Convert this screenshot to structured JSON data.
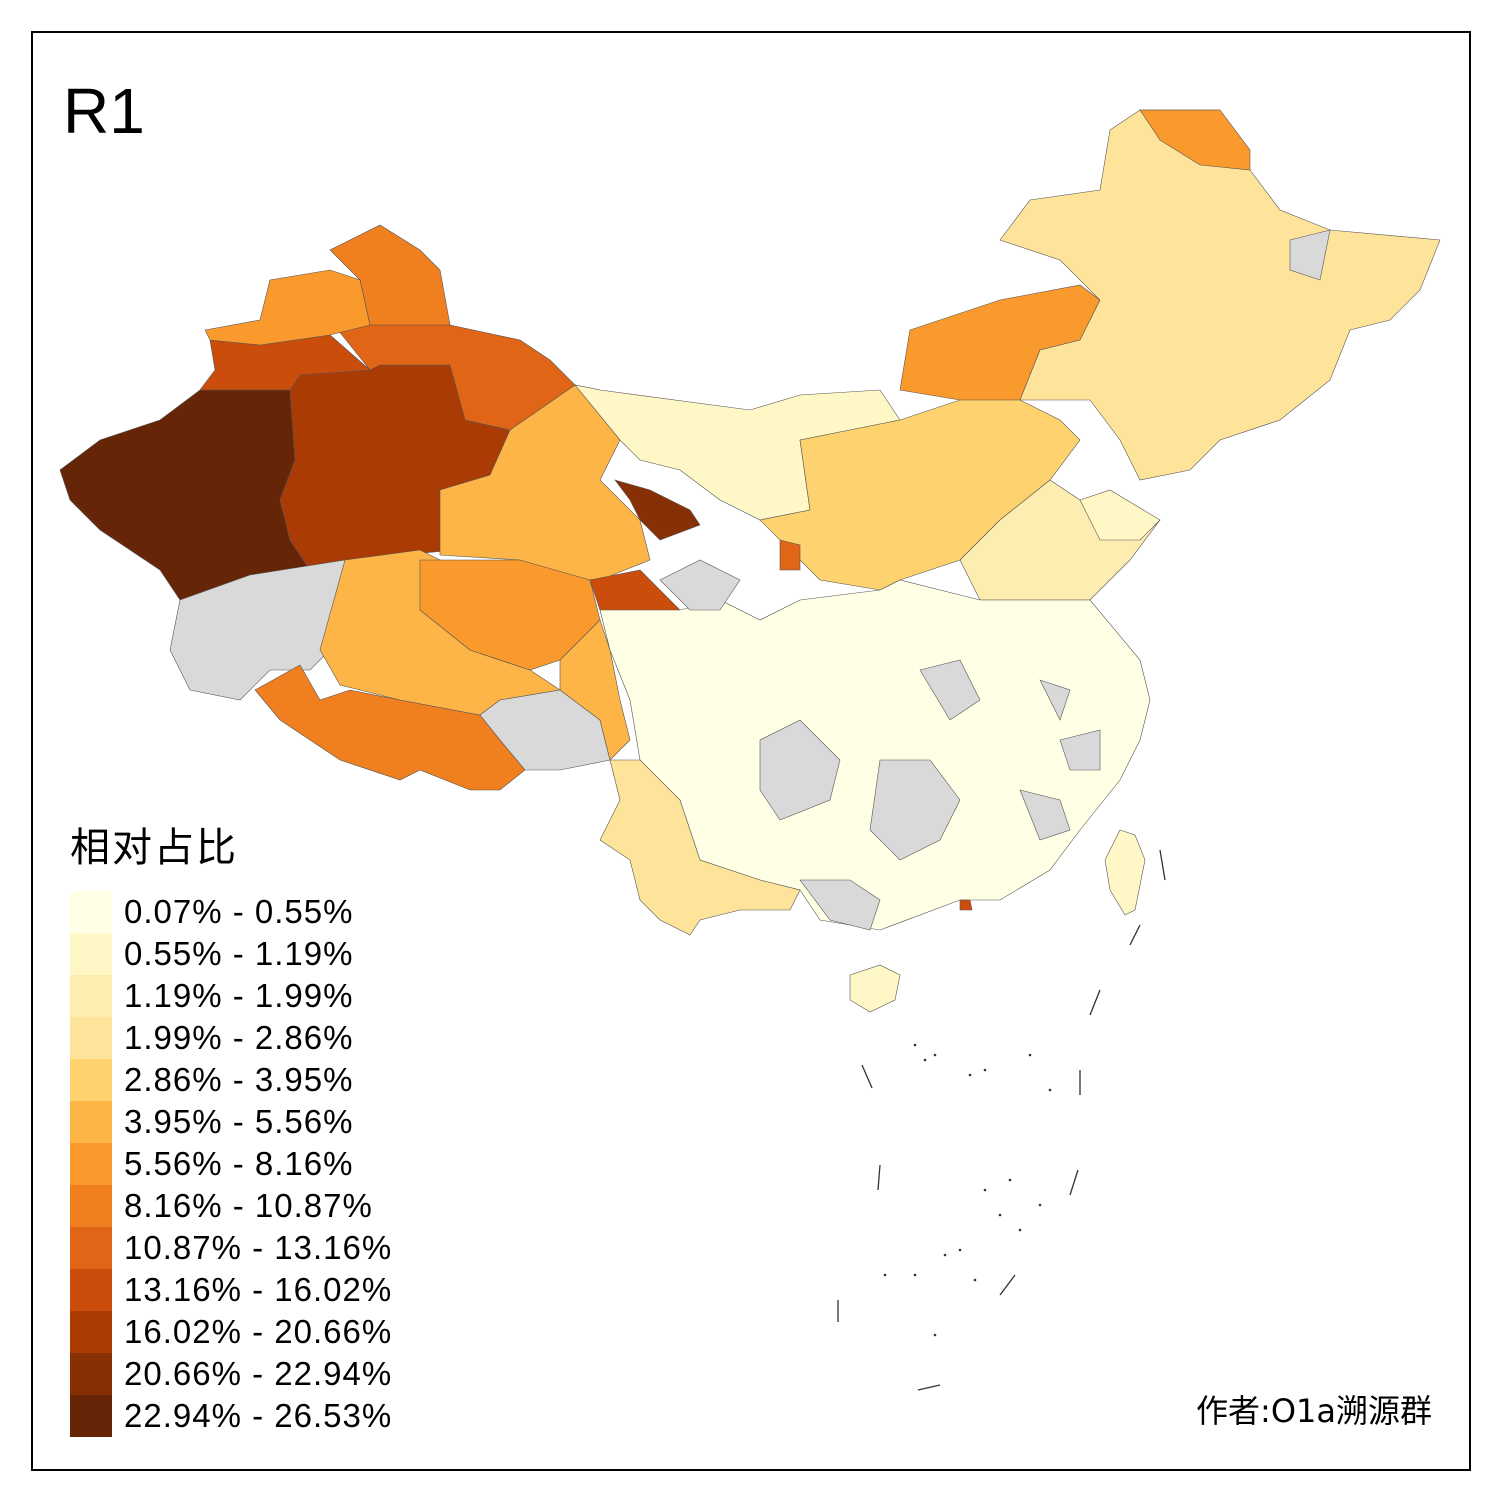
{
  "title": "R1",
  "legend": {
    "title": "相对占比",
    "bins": [
      {
        "label": "0.07% - 0.55%",
        "color": "#ffffe5"
      },
      {
        "label": "0.55% - 1.19%",
        "color": "#fff7c6"
      },
      {
        "label": "1.19% - 1.99%",
        "color": "#feedb0"
      },
      {
        "label": "1.99% - 2.86%",
        "color": "#fee39a"
      },
      {
        "label": "2.86% - 3.95%",
        "color": "#fed26e"
      },
      {
        "label": "3.95% - 5.56%",
        "color": "#fdb547"
      },
      {
        "label": "5.56% - 8.16%",
        "color": "#fb9a2c"
      },
      {
        "label": "8.16% - 10.87%",
        "color": "#f07f20"
      },
      {
        "label": "10.87% - 13.16%",
        "color": "#e06516"
      },
      {
        "label": "13.16% - 16.02%",
        "color": "#cb4d0b"
      },
      {
        "label": "16.02% - 20.66%",
        "color": "#aa3b05"
      },
      {
        "label": "20.66% - 22.94%",
        "color": "#883005"
      },
      {
        "label": "22.94% - 26.53%",
        "color": "#662506"
      }
    ],
    "no_data_color": "#d9d9d9"
  },
  "author": "作者:O1a溯源群",
  "region_bins": [
    12,
    10,
    9,
    8,
    7,
    6,
    -1,
    7,
    5,
    -1,
    5,
    6,
    11,
    9,
    5,
    1,
    6,
    3,
    6,
    -1,
    4,
    2,
    0,
    3,
    -1,
    -1,
    -1,
    -1,
    -1,
    -1,
    -1,
    -1,
    1,
    1,
    8,
    9,
    1
  ]
}
